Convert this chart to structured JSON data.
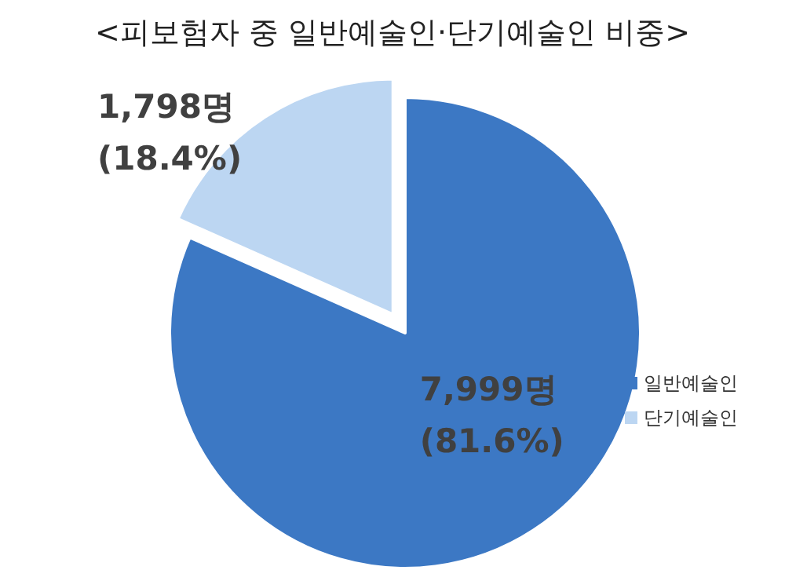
{
  "chart_data": {
    "type": "pie",
    "title": "<피보험자 중 일반예술인·단기예술인 비중>",
    "categories": [
      "일반예술인",
      "단기예술인"
    ],
    "values": [
      7999,
      1798
    ],
    "colors": [
      "#3c78c4",
      "#bcd6f2"
    ],
    "value_labels": [
      "7,999명 (81.6%)",
      "1,798명 (18.4%)"
    ],
    "legend": "right"
  }
}
